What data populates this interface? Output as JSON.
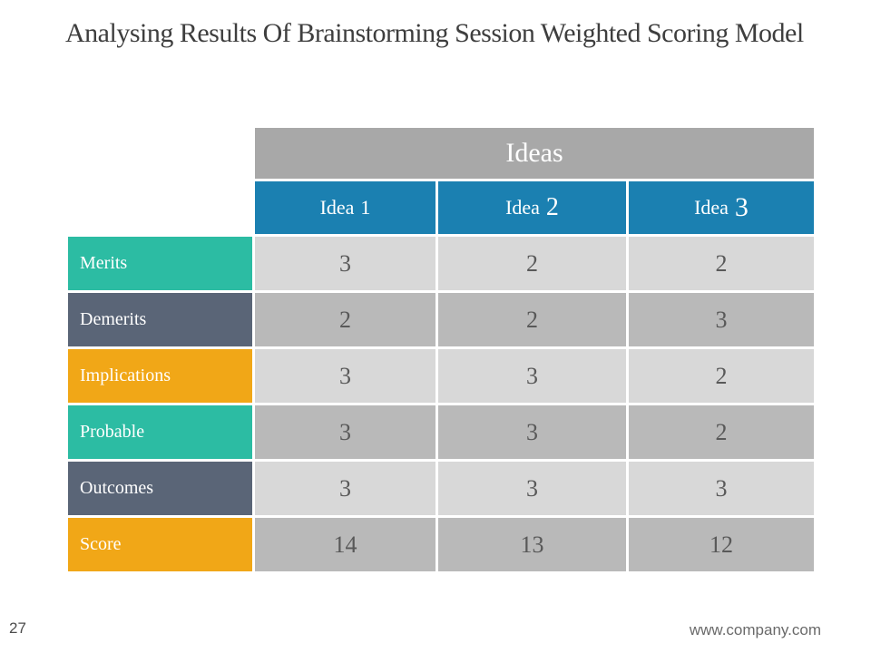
{
  "slide": {
    "title": "Analysing Results Of Brainstorming Session Weighted Scoring Model",
    "footer": {
      "page_number": "27",
      "website": "www.company.com"
    }
  },
  "table": {
    "group_header": "Ideas",
    "columns": [
      {
        "prefix": "Idea",
        "number": "1"
      },
      {
        "prefix": "Idea",
        "number": "2"
      },
      {
        "prefix": "Idea",
        "number": "3"
      }
    ],
    "rows": [
      {
        "label": "Merits",
        "accent": "teal",
        "shade": "light",
        "values": [
          "3",
          "2",
          "2"
        ]
      },
      {
        "label": "Demerits",
        "accent": "slate",
        "shade": "dark",
        "values": [
          "2",
          "2",
          "3"
        ]
      },
      {
        "label": "Implications",
        "accent": "orange",
        "shade": "light",
        "values": [
          "3",
          "3",
          "2"
        ]
      },
      {
        "label": "Probable",
        "accent": "teal",
        "shade": "dark",
        "values": [
          "3",
          "3",
          "2"
        ]
      },
      {
        "label": "Outcomes",
        "accent": "slate",
        "shade": "light",
        "values": [
          "3",
          "3",
          "3"
        ]
      },
      {
        "label": "Score",
        "accent": "orange",
        "shade": "dark",
        "values": [
          "14",
          "13",
          "12"
        ]
      }
    ],
    "colors": {
      "group_header_bg": "#a8a8a8",
      "idea_header_bg": "#1b80b1",
      "accent_teal": "#2cbca3",
      "accent_slate": "#5a6577",
      "accent_orange": "#f1a717",
      "cell_light": "#d8d8d8",
      "cell_dark": "#b9b9b9",
      "value_text": "#595959"
    }
  }
}
